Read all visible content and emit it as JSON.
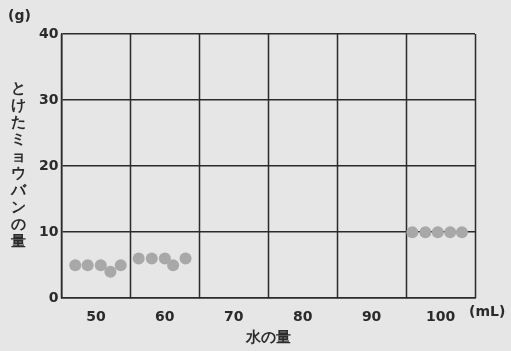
{
  "chart_data": {
    "type": "scatter",
    "x_label": "水の量",
    "x_unit": "(mL)",
    "y_label": "とけたミョウバンの量",
    "y_unit": "(g)",
    "x": [
      47.0,
      48.8,
      50.7,
      52.1,
      53.6,
      56.2,
      58.1,
      60.0,
      61.2,
      63.0,
      95.9,
      97.8,
      99.6,
      101.4,
      103.1
    ],
    "values": [
      5,
      5,
      5,
      4,
      5,
      6,
      6,
      6,
      5,
      6,
      10,
      10,
      10,
      10,
      10
    ],
    "color": "#a8a8a8",
    "marker": "circle",
    "xlim": [
      45,
      105
    ],
    "xticks": [
      50,
      60,
      70,
      80,
      90,
      100
    ],
    "ylim": [
      0,
      40
    ],
    "yticks": [
      0,
      10,
      20,
      30,
      40
    ],
    "grid": true
  }
}
